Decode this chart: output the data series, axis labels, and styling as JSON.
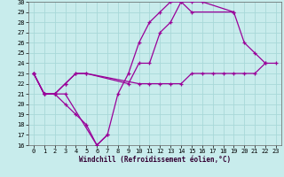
{
  "xlabel": "Windchill (Refroidissement éolien,°C)",
  "bg_color": "#c8ecec",
  "grid_color": "#a8d8d8",
  "line_color": "#990099",
  "xlim": [
    -0.5,
    23.5
  ],
  "ylim": [
    16,
    30
  ],
  "xticks": [
    0,
    1,
    2,
    3,
    4,
    5,
    6,
    7,
    8,
    9,
    10,
    11,
    12,
    13,
    14,
    15,
    16,
    17,
    18,
    19,
    20,
    21,
    22,
    23
  ],
  "yticks": [
    16,
    17,
    18,
    19,
    20,
    21,
    22,
    23,
    24,
    25,
    26,
    27,
    28,
    29,
    30
  ],
  "series": [
    {
      "x": [
        0,
        1,
        2,
        3,
        6,
        7,
        8,
        9,
        10,
        11,
        12,
        13,
        14,
        15,
        16,
        19
      ],
      "y": [
        23,
        21,
        21,
        21,
        16,
        17,
        21,
        23,
        26,
        28,
        29,
        30,
        30,
        30,
        30,
        29
      ]
    },
    {
      "x": [
        0,
        1,
        2,
        3,
        4,
        5,
        6,
        7
      ],
      "y": [
        23,
        21,
        21,
        20,
        19,
        18,
        16,
        17
      ]
    },
    {
      "x": [
        0,
        1,
        2,
        3,
        4,
        5,
        9,
        10,
        11,
        12,
        13,
        14,
        15,
        19,
        20,
        21,
        22
      ],
      "y": [
        23,
        21,
        21,
        22,
        23,
        23,
        22,
        24,
        24,
        27,
        28,
        30,
        29,
        29,
        26,
        25,
        24
      ]
    },
    {
      "x": [
        0,
        1,
        2,
        3,
        4,
        5,
        10,
        11,
        12,
        13,
        14,
        15,
        16,
        17,
        18,
        19,
        20,
        21,
        22,
        23
      ],
      "y": [
        23,
        21,
        21,
        22,
        23,
        23,
        22,
        22,
        22,
        22,
        22,
        23,
        23,
        23,
        23,
        23,
        23,
        23,
        24,
        24
      ]
    }
  ]
}
